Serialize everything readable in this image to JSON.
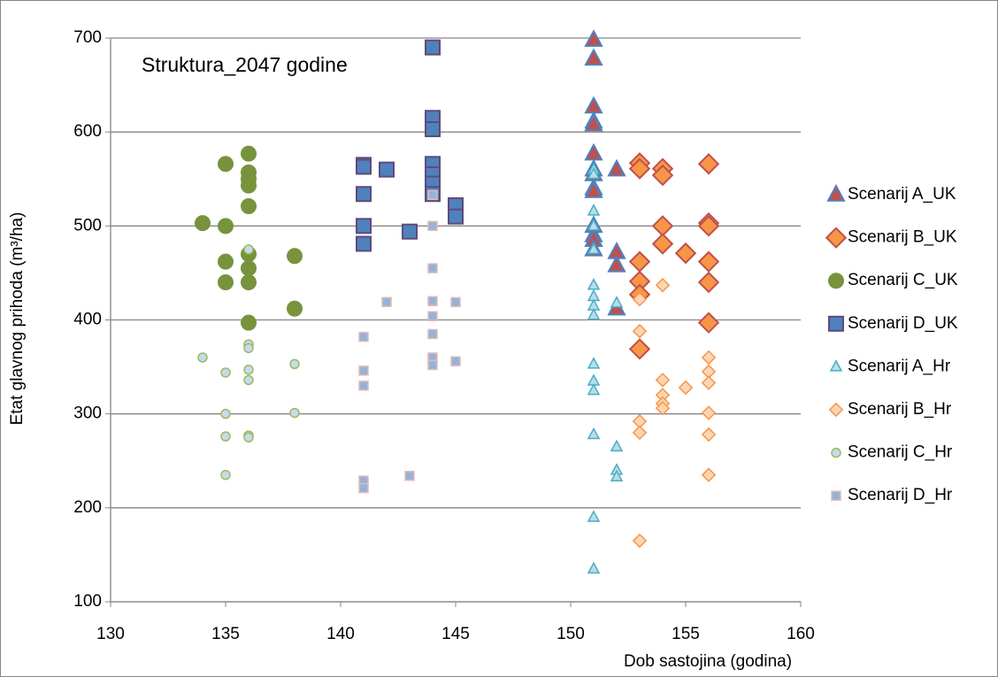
{
  "chart_data": {
    "type": "scatter",
    "title": "Struktura_2047 godine",
    "x_label": "Dob sastojina (godina)",
    "y_label": "Etat glavnog prihoda (m³/ha)",
    "xlim": [
      130,
      160
    ],
    "xticks": [
      130,
      135,
      140,
      145,
      150,
      155,
      160
    ],
    "ylim": [
      100,
      700
    ],
    "yticks": [
      100,
      200,
      300,
      400,
      500,
      600,
      700
    ],
    "grid": true,
    "legend": "right",
    "series": [
      {
        "name": "Scenarij A_UK",
        "color": "#c0504d",
        "edge": "#4f81bd",
        "marker": "triangle",
        "size": 9,
        "x": [
          151,
          151,
          151,
          151,
          151,
          151,
          151,
          151,
          151,
          151,
          151,
          151,
          151,
          151,
          152,
          152,
          152,
          152
        ],
        "values": [
          698,
          678,
          627,
          611,
          608,
          577,
          560,
          555,
          540,
          537,
          500,
          490,
          485,
          475,
          560,
          472,
          458,
          412
        ]
      },
      {
        "name": "Scenarij B_UK",
        "color": "#f79646",
        "edge": "#c0504d",
        "marker": "diamond",
        "size": 9,
        "x": [
          153,
          153,
          153,
          153,
          153,
          153,
          154,
          154,
          154,
          154,
          155,
          156,
          156,
          156,
          156,
          156,
          156
        ],
        "values": [
          567,
          561,
          462,
          441,
          427,
          369,
          561,
          554,
          500,
          481,
          471,
          566,
          503,
          500,
          462,
          440,
          397
        ]
      },
      {
        "name": "Scenarij C_UK",
        "color": "#77933c",
        "edge": "#77933c",
        "marker": "circle",
        "size": 8,
        "x": [
          134,
          135,
          135,
          135,
          135,
          136,
          136,
          136,
          136,
          136,
          136,
          136,
          136,
          136,
          138,
          138
        ],
        "values": [
          503,
          566,
          500,
          462,
          440,
          577,
          557,
          550,
          543,
          521,
          470,
          455,
          440,
          397,
          468,
          412
        ]
      },
      {
        "name": "Scenarij D_UK",
        "color": "#4f81bd",
        "edge": "#604a7b",
        "marker": "square",
        "size": 8,
        "x": [
          141,
          141,
          141,
          141,
          141,
          142,
          143,
          144,
          144,
          144,
          144,
          144,
          144,
          144,
          145,
          145
        ],
        "values": [
          565,
          563,
          534,
          500,
          481,
          560,
          494,
          690,
          615,
          603,
          566,
          555,
          545,
          534,
          522,
          510
        ]
      },
      {
        "name": "Scenarij A_Hr",
        "color": "#b7dee8",
        "edge": "#4bacc6",
        "marker": "triangle",
        "size": 6,
        "x": [
          151,
          151,
          151,
          151,
          151,
          151,
          151,
          151,
          151,
          151,
          151,
          151,
          151,
          151,
          151,
          152,
          152,
          152,
          152
        ],
        "values": [
          560,
          555,
          516,
          500,
          475,
          437,
          425,
          415,
          405,
          353,
          335,
          325,
          278,
          190,
          135,
          418,
          265,
          240,
          233
        ]
      },
      {
        "name": "Scenarij B_Hr",
        "color": "#fcd5b4",
        "edge": "#f79646",
        "marker": "diamond",
        "size": 6,
        "x": [
          153,
          153,
          153,
          153,
          153,
          154,
          154,
          154,
          154,
          154,
          155,
          156,
          156,
          156,
          156,
          156,
          156
        ],
        "values": [
          422,
          388,
          292,
          280,
          165,
          437,
          336,
          320,
          311,
          306,
          328,
          360,
          345,
          333,
          301,
          278,
          235
        ]
      },
      {
        "name": "Scenarij C_Hr",
        "color": "#c6d9f1",
        "edge": "#9bbb59",
        "marker": "circle",
        "size": 5,
        "x": [
          134,
          135,
          135,
          135,
          135,
          136,
          136,
          136,
          136,
          136,
          136,
          136,
          138,
          138
        ],
        "values": [
          360,
          344,
          300,
          276,
          235,
          475,
          374,
          370,
          347,
          336,
          277,
          275,
          353,
          301
        ]
      },
      {
        "name": "Scenarij D_Hr",
        "color": "#95b3d7",
        "edge": "#e6b9b8",
        "marker": "square",
        "size": 5,
        "x": [
          141,
          141,
          141,
          141,
          141,
          142,
          143,
          144,
          144,
          144,
          144,
          144,
          144,
          144,
          144,
          145,
          145
        ],
        "values": [
          382,
          346,
          330,
          229,
          221,
          419,
          234,
          533,
          500,
          455,
          420,
          404,
          385,
          360,
          352,
          419,
          356
        ]
      }
    ]
  }
}
